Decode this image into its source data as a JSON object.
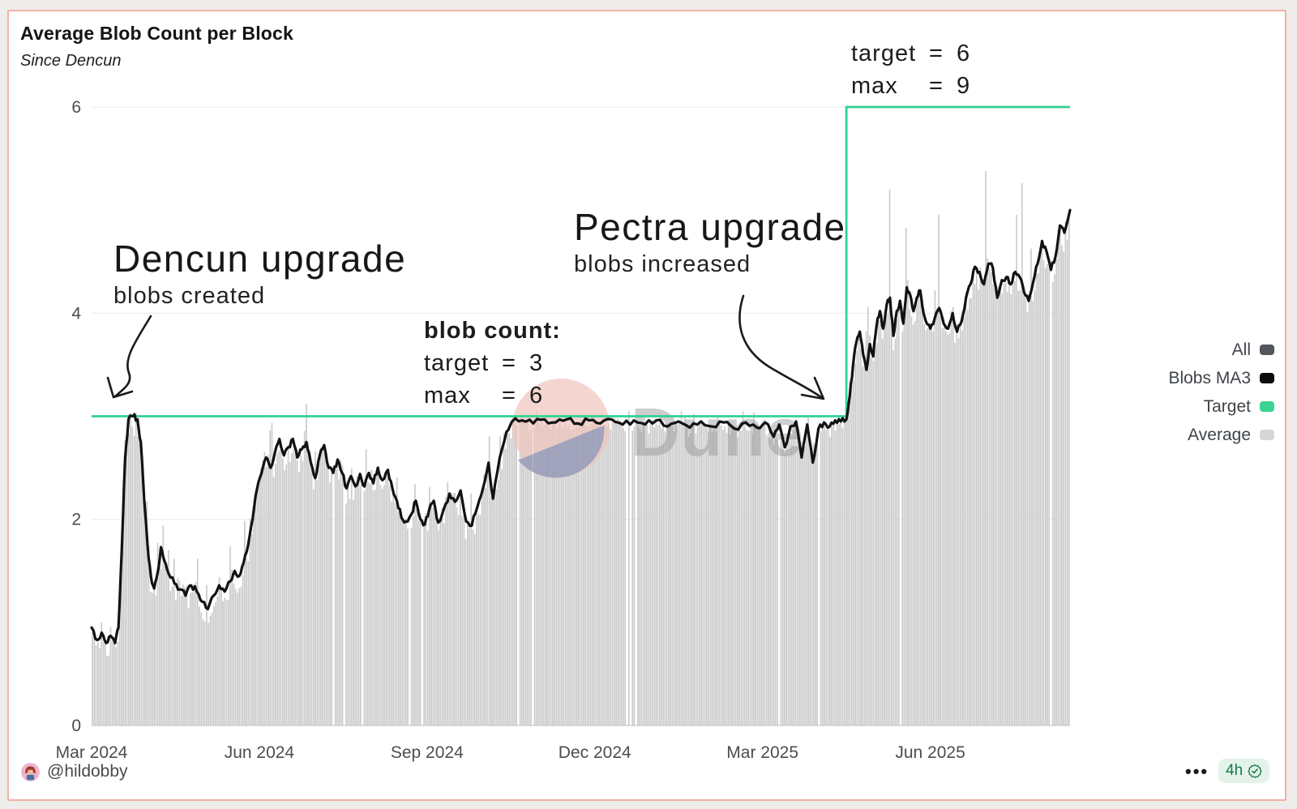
{
  "card": {
    "title": "Average Blob Count per Block",
    "subtitle": "Since Dencun"
  },
  "annotations": {
    "dencun": {
      "title": "Dencun upgrade",
      "subtitle": "blobs created"
    },
    "pectra": {
      "title": "Pectra upgrade",
      "subtitle": "blobs increased"
    },
    "blob_count": {
      "heading": "blob count:",
      "rows": [
        {
          "label": "target",
          "eq": "=",
          "value": "3"
        },
        {
          "label": "max",
          "eq": "=",
          "value": "6"
        }
      ]
    },
    "new_limits": {
      "rows": [
        {
          "label": "target",
          "eq": "=",
          "value": "6"
        },
        {
          "label": "max",
          "eq": "=",
          "value": "9"
        }
      ]
    }
  },
  "legend": {
    "items": [
      {
        "label": "All",
        "color": "#53575c"
      },
      {
        "label": "Blobs MA3",
        "color": "#0b0b0b"
      },
      {
        "label": "Target",
        "color": "#3bd492"
      },
      {
        "label": "Average",
        "color": "#d7d7d7"
      }
    ]
  },
  "watermark": {
    "text": "Dune"
  },
  "footer": {
    "handle": "@hildobby",
    "menu": "•••",
    "badge": {
      "time": "4h",
      "icon": "verified-check"
    }
  },
  "chart_data": {
    "type": "bar+line",
    "title": "Average Blob Count per Block",
    "subtitle": "Since Dencun",
    "grid": "horizontal-only",
    "legend_position": "right",
    "y_axis": {
      "ticks": [
        0,
        2,
        4,
        6
      ],
      "max": 6,
      "ylim": [
        0,
        6
      ]
    },
    "x_axis": {
      "max_month": 17.5,
      "origin_label": "Mar 2024",
      "ticks": [
        {
          "month": 0,
          "label": "Mar 2024"
        },
        {
          "month": 3,
          "label": "Jun 2024"
        },
        {
          "month": 6,
          "label": "Sep 2024"
        },
        {
          "month": 9,
          "label": "Dec 2024"
        },
        {
          "month": 12,
          "label": "Mar 2025"
        },
        {
          "month": 15,
          "label": "Jun 2025"
        }
      ]
    },
    "events": [
      {
        "month": 0.55,
        "label": "Dencun upgrade",
        "effect": "blobs created, target 3 / max 6"
      },
      {
        "month": 13.5,
        "label": "Pectra upgrade",
        "effect": "blobs increased, target 6 / max 9"
      }
    ],
    "series": [
      {
        "name": "Blobs MA3",
        "type": "line",
        "color": "#121212",
        "points": [
          [
            0,
            0.95
          ],
          [
            0.1,
            0.83
          ],
          [
            0.18,
            0.9
          ],
          [
            0.26,
            0.8
          ],
          [
            0.34,
            0.87
          ],
          [
            0.42,
            0.8
          ],
          [
            0.48,
            0.95
          ],
          [
            0.54,
            1.7
          ],
          [
            0.6,
            2.6
          ],
          [
            0.66,
            2.97
          ],
          [
            0.74,
            3.0
          ],
          [
            0.82,
            2.97
          ],
          [
            0.88,
            2.75
          ],
          [
            0.94,
            2.2
          ],
          [
            1.0,
            1.75
          ],
          [
            1.06,
            1.45
          ],
          [
            1.12,
            1.33
          ],
          [
            1.18,
            1.48
          ],
          [
            1.24,
            1.73
          ],
          [
            1.3,
            1.6
          ],
          [
            1.38,
            1.47
          ],
          [
            1.48,
            1.38
          ],
          [
            1.58,
            1.32
          ],
          [
            1.68,
            1.26
          ],
          [
            1.78,
            1.36
          ],
          [
            1.88,
            1.3
          ],
          [
            1.98,
            1.2
          ],
          [
            2.08,
            1.13
          ],
          [
            2.18,
            1.26
          ],
          [
            2.28,
            1.36
          ],
          [
            2.38,
            1.3
          ],
          [
            2.48,
            1.4
          ],
          [
            2.56,
            1.5
          ],
          [
            2.64,
            1.45
          ],
          [
            2.72,
            1.58
          ],
          [
            2.8,
            1.75
          ],
          [
            2.88,
            2.0
          ],
          [
            2.96,
            2.3
          ],
          [
            3.04,
            2.45
          ],
          [
            3.12,
            2.6
          ],
          [
            3.2,
            2.5
          ],
          [
            3.28,
            2.65
          ],
          [
            3.36,
            2.78
          ],
          [
            3.44,
            2.62
          ],
          [
            3.52,
            2.7
          ],
          [
            3.6,
            2.78
          ],
          [
            3.68,
            2.6
          ],
          [
            3.76,
            2.68
          ],
          [
            3.84,
            2.75
          ],
          [
            3.92,
            2.55
          ],
          [
            4.0,
            2.4
          ],
          [
            4.08,
            2.62
          ],
          [
            4.16,
            2.72
          ],
          [
            4.24,
            2.5
          ],
          [
            4.32,
            2.45
          ],
          [
            4.4,
            2.58
          ],
          [
            4.48,
            2.45
          ],
          [
            4.56,
            2.3
          ],
          [
            4.64,
            2.42
          ],
          [
            4.72,
            2.32
          ],
          [
            4.8,
            2.44
          ],
          [
            4.88,
            2.32
          ],
          [
            4.96,
            2.45
          ],
          [
            5.04,
            2.35
          ],
          [
            5.12,
            2.5
          ],
          [
            5.2,
            2.38
          ],
          [
            5.3,
            2.48
          ],
          [
            5.38,
            2.3
          ],
          [
            5.46,
            2.18
          ],
          [
            5.54,
            2.02
          ],
          [
            5.62,
            1.98
          ],
          [
            5.72,
            2.05
          ],
          [
            5.8,
            2.18
          ],
          [
            5.88,
            2.0
          ],
          [
            5.96,
            1.95
          ],
          [
            6.04,
            2.1
          ],
          [
            6.12,
            2.18
          ],
          [
            6.2,
            1.97
          ],
          [
            6.3,
            2.1
          ],
          [
            6.4,
            2.25
          ],
          [
            6.5,
            2.17
          ],
          [
            6.6,
            2.28
          ],
          [
            6.7,
            1.98
          ],
          [
            6.8,
            1.94
          ],
          [
            6.9,
            2.12
          ],
          [
            7.0,
            2.3
          ],
          [
            7.1,
            2.55
          ],
          [
            7.18,
            2.2
          ],
          [
            7.3,
            2.6
          ],
          [
            7.42,
            2.85
          ],
          [
            7.52,
            2.95
          ],
          [
            7.7,
            2.96
          ],
          [
            7.9,
            2.93
          ],
          [
            8.1,
            2.97
          ],
          [
            8.3,
            2.94
          ],
          [
            8.5,
            2.97
          ],
          [
            8.7,
            2.93
          ],
          [
            8.9,
            2.96
          ],
          [
            9.1,
            2.93
          ],
          [
            9.3,
            2.97
          ],
          [
            9.5,
            2.92
          ],
          [
            9.7,
            2.96
          ],
          [
            9.9,
            2.92
          ],
          [
            10.1,
            2.96
          ],
          [
            10.3,
            2.9
          ],
          [
            10.5,
            2.95
          ],
          [
            10.7,
            2.89
          ],
          [
            10.9,
            2.95
          ],
          [
            11.1,
            2.9
          ],
          [
            11.3,
            2.94
          ],
          [
            11.5,
            2.88
          ],
          [
            11.7,
            2.94
          ],
          [
            11.9,
            2.89
          ],
          [
            12.05,
            2.94
          ],
          [
            12.2,
            2.8
          ],
          [
            12.3,
            2.92
          ],
          [
            12.4,
            2.7
          ],
          [
            12.5,
            2.9
          ],
          [
            12.6,
            2.95
          ],
          [
            12.7,
            2.6
          ],
          [
            12.8,
            2.92
          ],
          [
            12.9,
            2.55
          ],
          [
            13.0,
            2.88
          ],
          [
            13.1,
            2.94
          ],
          [
            13.2,
            2.9
          ],
          [
            13.3,
            2.96
          ],
          [
            13.4,
            2.95
          ],
          [
            13.5,
            2.97
          ],
          [
            13.56,
            3.2
          ],
          [
            13.62,
            3.5
          ],
          [
            13.68,
            3.72
          ],
          [
            13.74,
            3.82
          ],
          [
            13.8,
            3.6
          ],
          [
            13.86,
            3.45
          ],
          [
            13.92,
            3.7
          ],
          [
            13.98,
            3.58
          ],
          [
            14.04,
            3.88
          ],
          [
            14.1,
            4.02
          ],
          [
            14.16,
            3.85
          ],
          [
            14.22,
            4.08
          ],
          [
            14.28,
            4.15
          ],
          [
            14.34,
            3.78
          ],
          [
            14.4,
            4.02
          ],
          [
            14.46,
            4.12
          ],
          [
            14.52,
            3.9
          ],
          [
            14.58,
            4.25
          ],
          [
            14.64,
            4.18
          ],
          [
            14.7,
            4.02
          ],
          [
            14.76,
            4.15
          ],
          [
            14.82,
            4.22
          ],
          [
            14.88,
            4.0
          ],
          [
            14.94,
            3.9
          ],
          [
            15.0,
            3.85
          ],
          [
            15.08,
            3.95
          ],
          [
            15.16,
            4.05
          ],
          [
            15.24,
            3.9
          ],
          [
            15.32,
            3.85
          ],
          [
            15.4,
            4.0
          ],
          [
            15.48,
            3.82
          ],
          [
            15.56,
            3.92
          ],
          [
            15.64,
            4.15
          ],
          [
            15.72,
            4.28
          ],
          [
            15.8,
            4.45
          ],
          [
            15.88,
            4.4
          ],
          [
            15.96,
            4.28
          ],
          [
            16.04,
            4.48
          ],
          [
            16.12,
            4.44
          ],
          [
            16.2,
            4.15
          ],
          [
            16.28,
            4.32
          ],
          [
            16.36,
            4.35
          ],
          [
            16.44,
            4.28
          ],
          [
            16.52,
            4.4
          ],
          [
            16.6,
            4.35
          ],
          [
            16.68,
            4.2
          ],
          [
            16.76,
            4.12
          ],
          [
            16.84,
            4.3
          ],
          [
            16.92,
            4.48
          ],
          [
            17.0,
            4.7
          ],
          [
            17.08,
            4.6
          ],
          [
            17.16,
            4.42
          ],
          [
            17.24,
            4.55
          ],
          [
            17.32,
            4.85
          ],
          [
            17.4,
            4.78
          ],
          [
            17.5,
            5.0
          ]
        ]
      },
      {
        "name": "Target",
        "type": "step-line",
        "color": "#31d393",
        "segments": [
          {
            "from_month": 0,
            "to_month": 13.5,
            "value": 3
          },
          {
            "from_month": 13.5,
            "to_month": 17.5,
            "value": 6
          }
        ]
      },
      {
        "name": "Average",
        "type": "bar",
        "color": "#cbcbcb",
        "description": "daily average blob count per block, scattered tightly around the Blobs MA3 line"
      },
      {
        "name": "All",
        "type": "toggle",
        "color": "#53575c"
      }
    ]
  }
}
